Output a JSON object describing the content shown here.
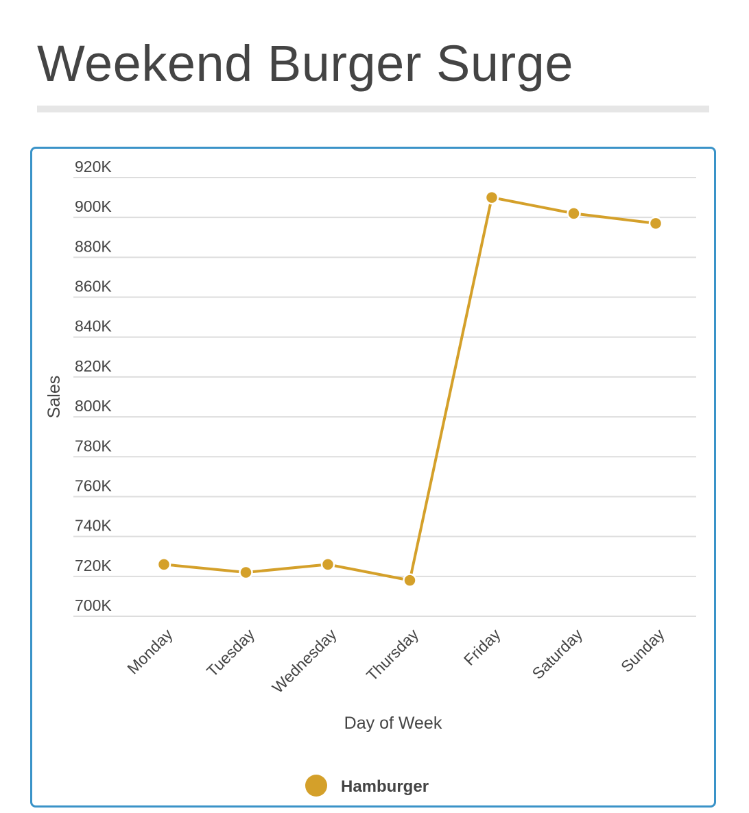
{
  "title": "Weekend Burger Surge",
  "colors": {
    "series": "#d4a02a",
    "accent_border": "#3a93c8",
    "grid": "#dddddd"
  },
  "chart_data": {
    "type": "line",
    "title": "Weekend Burger Surge",
    "xlabel": "Day of Week",
    "ylabel": "Sales",
    "categories": [
      "Monday",
      "Tuesday",
      "Wednesday",
      "Thursday",
      "Friday",
      "Saturday",
      "Sunday"
    ],
    "series": [
      {
        "name": "Hamburger",
        "values": [
          726000,
          722000,
          726000,
          718000,
          910000,
          902000,
          897000
        ]
      }
    ],
    "ylim": [
      700000,
      920000
    ],
    "y_ticks": [
      700000,
      720000,
      740000,
      760000,
      780000,
      800000,
      820000,
      840000,
      860000,
      880000,
      900000,
      920000
    ],
    "y_tick_labels": [
      "700K",
      "720K",
      "740K",
      "760K",
      "780K",
      "800K",
      "820K",
      "840K",
      "860K",
      "880K",
      "900K",
      "920K"
    ],
    "grid": true,
    "legend": "bottom-center"
  }
}
